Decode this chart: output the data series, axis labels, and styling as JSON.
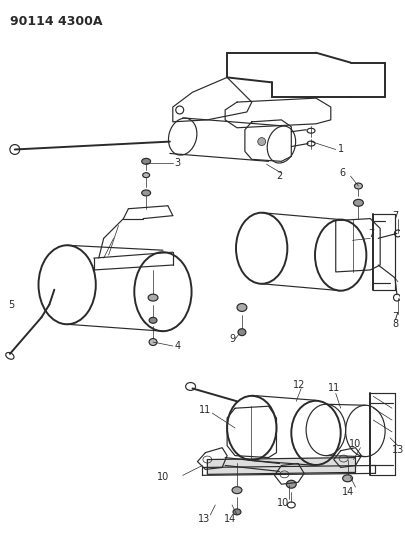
{
  "title": "90114 4300A",
  "bg_color": "#ffffff",
  "line_color": "#2a2a2a",
  "text_color": "#1a1a1a",
  "figsize": [
    4.05,
    5.33
  ],
  "dpi": 100,
  "lw": 0.85,
  "lw_thick": 1.4,
  "lw_thin": 0.5
}
